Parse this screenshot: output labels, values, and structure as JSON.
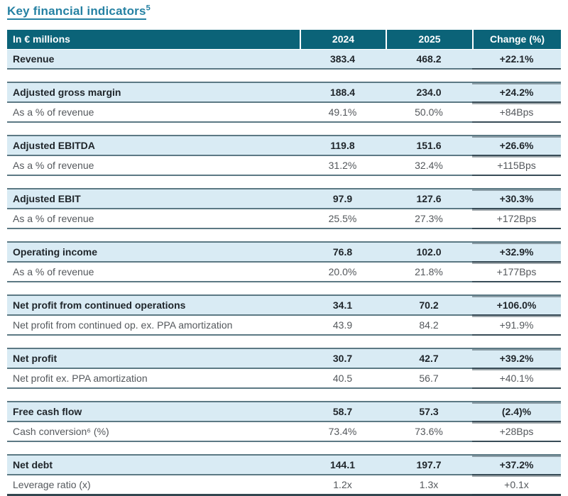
{
  "page": {
    "title": "Key financial indicators",
    "title_footnote": "5"
  },
  "table": {
    "header": {
      "metric": "In € millions",
      "col_2024": "2024",
      "col_2025": "2025",
      "change": "Change (%)"
    },
    "sections": [
      {
        "name": "revenue",
        "rows": [
          {
            "label": "Revenue",
            "v2024": "383.4",
            "v2025": "468.2",
            "change": "+22.1%"
          }
        ]
      },
      {
        "name": "adjusted-gross-margin",
        "rows": [
          {
            "label": "Adjusted gross margin",
            "v2024": "188.4",
            "v2025": "234.0",
            "change": "+24.2%"
          },
          {
            "label": "As a % of revenue",
            "v2024": "49.1%",
            "v2025": "50.0%",
            "change": "+84Bps"
          }
        ]
      },
      {
        "name": "adjusted-ebitda",
        "rows": [
          {
            "label": "Adjusted EBITDA",
            "v2024": "119.8",
            "v2025": "151.6",
            "change": "+26.6%"
          },
          {
            "label": "As a % of revenue",
            "v2024": "31.2%",
            "v2025": "32.4%",
            "change": "+115Bps"
          }
        ]
      },
      {
        "name": "adjusted-ebit",
        "rows": [
          {
            "label": "Adjusted EBIT",
            "v2024": "97.9",
            "v2025": "127.6",
            "change": "+30.3%"
          },
          {
            "label": "As a % of revenue",
            "v2024": "25.5%",
            "v2025": "27.3%",
            "change": "+172Bps"
          }
        ]
      },
      {
        "name": "operating-income",
        "rows": [
          {
            "label": "Operating income",
            "v2024": "76.8",
            "v2025": "102.0",
            "change": "+32.9%"
          },
          {
            "label": "As a % of revenue",
            "v2024": "20.0%",
            "v2025": "21.8%",
            "change": "+177Bps"
          }
        ]
      },
      {
        "name": "net-profit-continued-operations",
        "rows": [
          {
            "label": "Net profit from continued operations",
            "v2024": "34.1",
            "v2025": "70.2",
            "change": "+106.0%"
          },
          {
            "label": "Net profit from continued op. ex. PPA amortization",
            "v2024": "43.9",
            "v2025": "84.2",
            "change": "+91.9%"
          }
        ]
      },
      {
        "name": "net-profit",
        "rows": [
          {
            "label": "Net profit",
            "v2024": "30.7",
            "v2025": "42.7",
            "change": "+39.2%"
          },
          {
            "label": "Net profit ex. PPA amortization",
            "v2024": "40.5",
            "v2025": "56.7",
            "change": "+40.1%"
          }
        ]
      },
      {
        "name": "free-cash-flow",
        "rows": [
          {
            "label": "Free cash flow",
            "v2024": "58.7",
            "v2025": "57.3",
            "change": "(2.4)%"
          },
          {
            "label": "Cash conversion⁶ (%)",
            "v2024": "73.4%",
            "v2025": "73.6%",
            "change": "+28Bps"
          }
        ]
      },
      {
        "name": "net-debt",
        "rows": [
          {
            "label": "Net debt",
            "v2024": "144.1",
            "v2025": "197.7",
            "change": "+37.2%"
          },
          {
            "label": "Leverage ratio (x)",
            "v2024": "1.2x",
            "v2025": "1.3x",
            "change": "+0.1x"
          }
        ]
      }
    ]
  },
  "colors": {
    "header_bg": "#0b6378",
    "highlight_row_bg": "#d9ebf4",
    "border": "#5c7984",
    "border_strong": "#31464f",
    "title": "#2581a3",
    "text_bold": "#1f252a",
    "text_sub": "#54585c"
  }
}
